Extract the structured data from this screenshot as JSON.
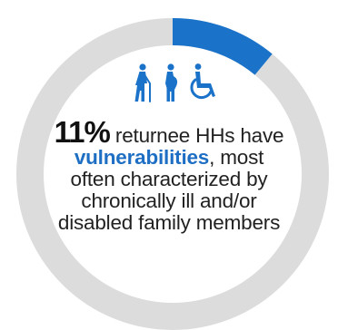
{
  "chart_data": {
    "type": "pie",
    "values": [
      11,
      89
    ],
    "colors": [
      "#1a73c9",
      "#dcdcdc"
    ]
  },
  "stat": {
    "percent": "11%",
    "text_after_percent": " returnee HHs have",
    "highlight": "vulnerabilities",
    "text_after_highlight": ", most",
    "line3": "often  characterized by",
    "line4": "chronically ill and/or",
    "line5": "disabled family members"
  },
  "icons": [
    "elderly-person-icon",
    "pregnant-woman-icon",
    "wheelchair-icon"
  ],
  "accent_color": "#1e6fc4"
}
